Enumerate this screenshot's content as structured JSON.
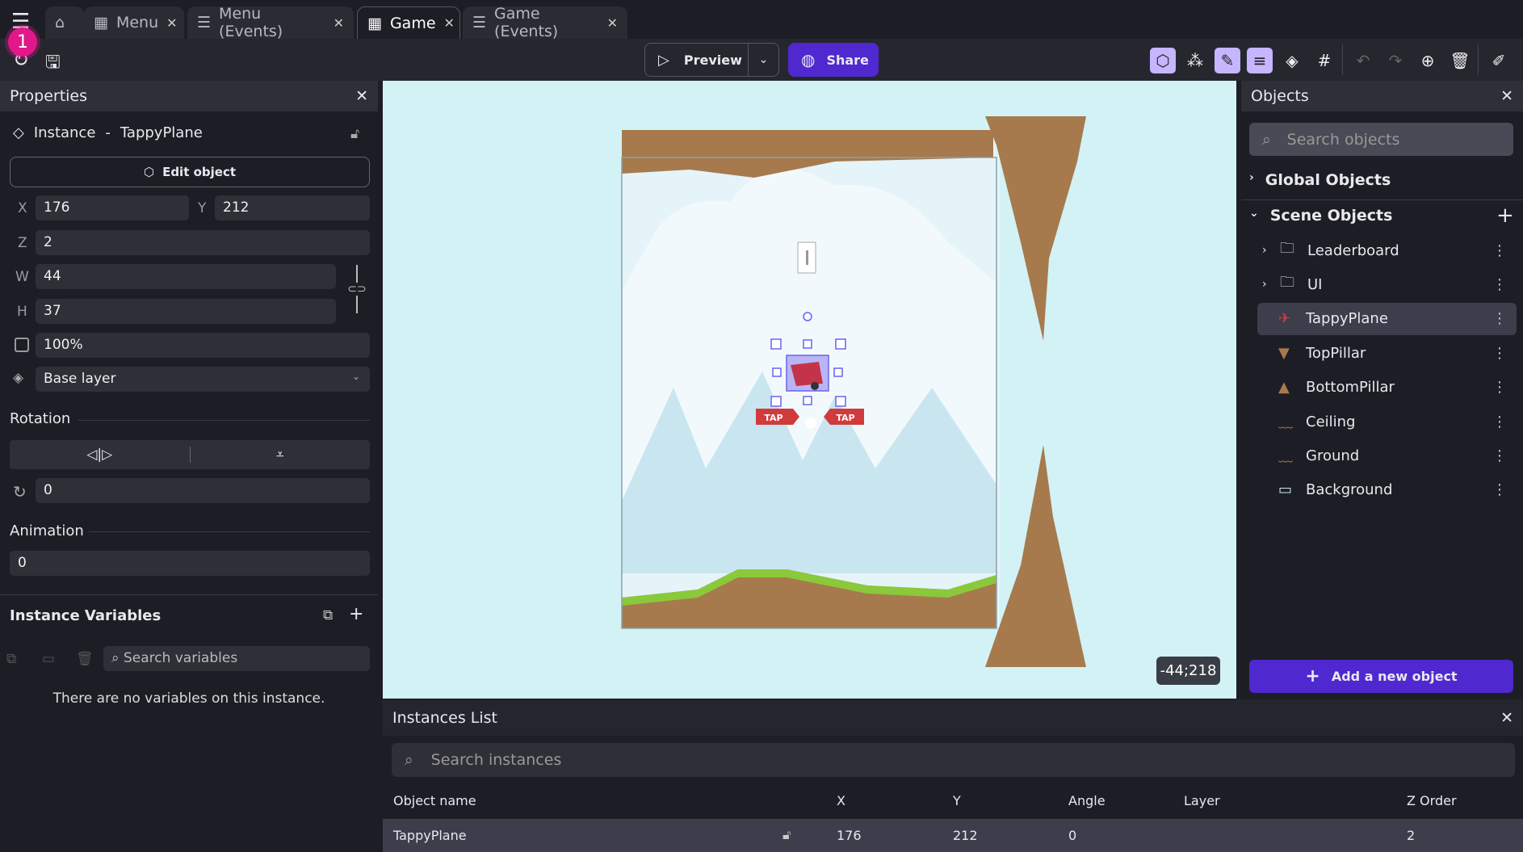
{
  "tabs": [
    {
      "label": "Menu",
      "icon": "scene-icon"
    },
    {
      "label": "Menu (Events)",
      "icon": "events-icon"
    },
    {
      "label": "Game",
      "icon": "scene-icon",
      "active": true
    },
    {
      "label": "Game (Events)",
      "icon": "events-icon"
    }
  ],
  "notification_badge": "1",
  "toolbar": {
    "preview": "Preview",
    "share": "Share",
    "accent": "#4f28d0"
  },
  "properties": {
    "title": "Properties",
    "instance_label": "Instance",
    "instance_sep": "-",
    "instance_name": "TappyPlane",
    "edit_object": "Edit object",
    "x_label": "X",
    "x": "176",
    "y_label": "Y",
    "y": "212",
    "z_label": "Z",
    "z": "2",
    "w_label": "W",
    "w": "44",
    "h_label": "H",
    "h": "37",
    "opacity": "100%",
    "layer": "Base layer",
    "rotation_label": "Rotation",
    "rotation": "0",
    "animation_label": "Animation",
    "animation": "0",
    "instance_variables": "Instance Variables",
    "search_variables": "Search variables",
    "no_variables": "There are no variables on this instance."
  },
  "canvas": {
    "coords": "-44;218",
    "tap": "TAP"
  },
  "objects": {
    "title": "Objects",
    "search_placeholder": "Search objects",
    "global": "Global Objects",
    "scene": "Scene Objects",
    "items": [
      {
        "name": "Leaderboard",
        "type": "folder"
      },
      {
        "name": "UI",
        "type": "folder"
      },
      {
        "name": "TappyPlane",
        "selected": true
      },
      {
        "name": "TopPillar"
      },
      {
        "name": "BottomPillar"
      },
      {
        "name": "Ceiling"
      },
      {
        "name": "Ground"
      },
      {
        "name": "Background"
      }
    ],
    "add": "Add a new object"
  },
  "instances": {
    "title": "Instances List",
    "search_placeholder": "Search instances",
    "columns": [
      "Object name",
      "X",
      "Y",
      "Angle",
      "Layer",
      "Z Order"
    ],
    "rows": [
      {
        "name": "TappyPlane",
        "x": "176",
        "y": "212",
        "angle": "0",
        "layer": "",
        "z": "2"
      }
    ]
  }
}
